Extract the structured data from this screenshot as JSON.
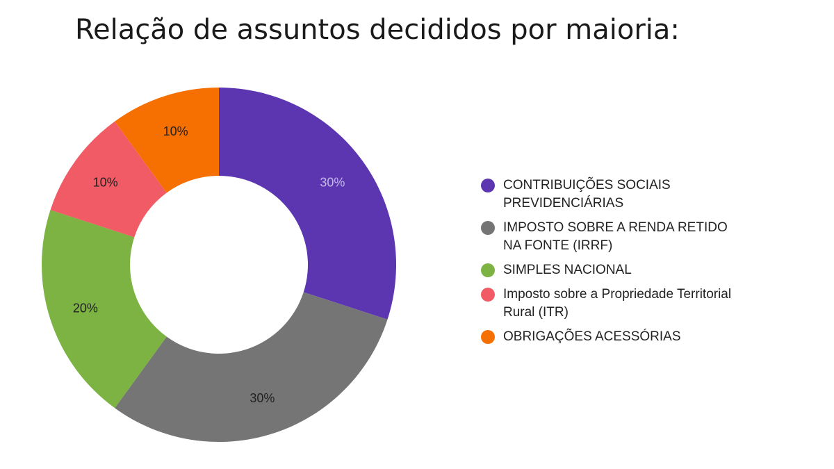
{
  "chart_data": {
    "type": "pie",
    "title": "Relação de assuntos decididos por maioria:",
    "donut": true,
    "legend_position": "right",
    "categories": [
      "CONTRIBUIÇÕES SOCIAIS PREVIDENCIÁRIAS",
      "IMPOSTO SOBRE A RENDA RETIDO NA FONTE (IRRF)",
      "SIMPLES NACIONAL",
      "Imposto sobre a Propriedade Territorial Rural (ITR)",
      "OBRIGAÇÕES ACESSÓRIAS"
    ],
    "values": [
      30,
      30,
      20,
      10,
      10
    ],
    "data_labels": [
      "30%",
      "30%",
      "20%",
      "10%",
      "10%"
    ],
    "colors": [
      "#5c35b1",
      "#757575",
      "#7cb342",
      "#f05b65",
      "#f57000"
    ],
    "label_colors": [
      "#c5b8e8",
      "#222222",
      "#222222",
      "#222222",
      "#222222"
    ]
  }
}
